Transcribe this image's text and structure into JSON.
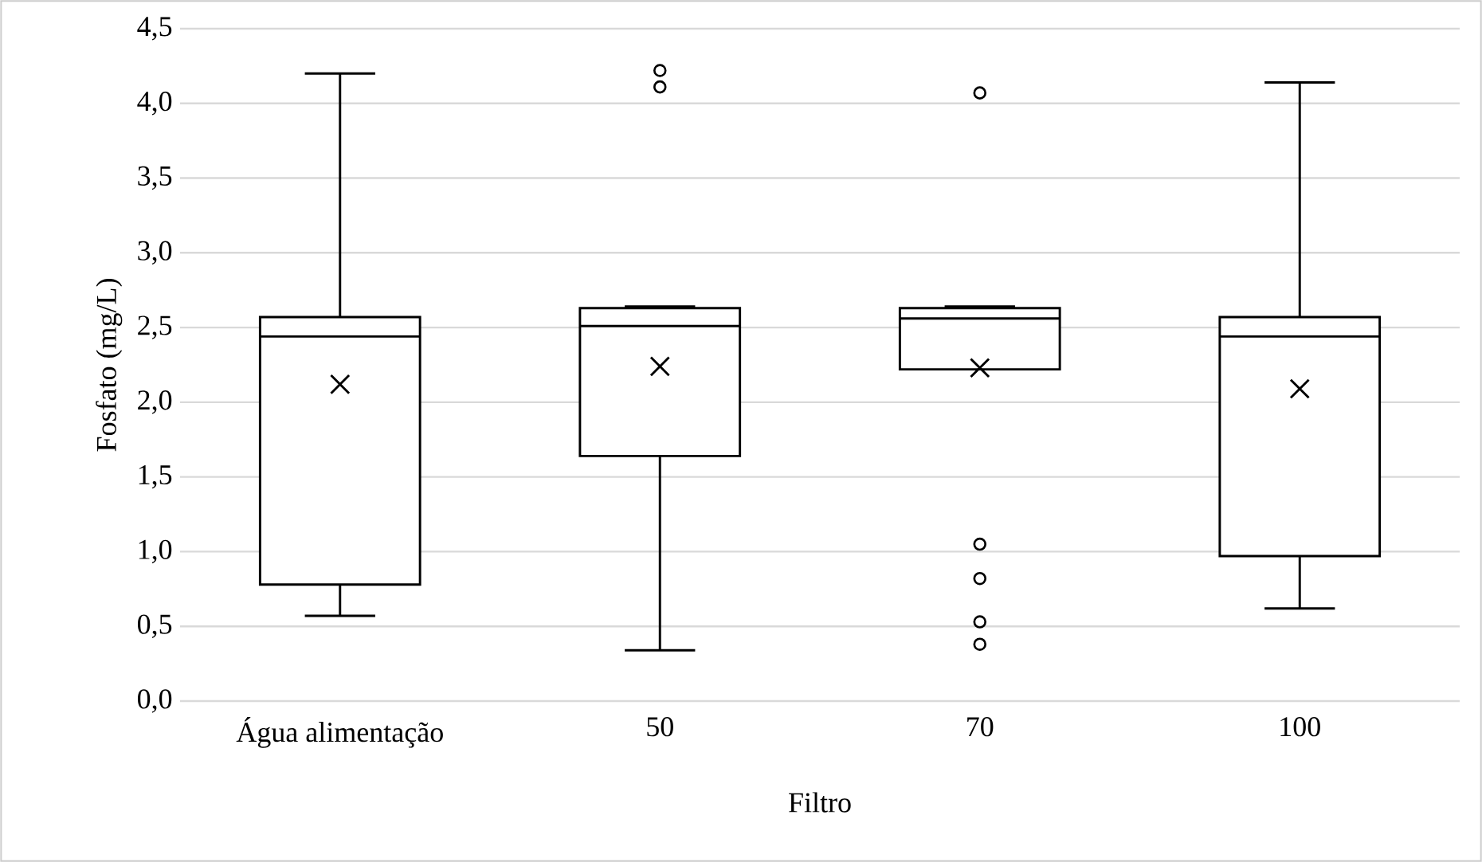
{
  "chart_data": {
    "type": "box",
    "xlabel": "Filtro",
    "ylabel": "Fosfato (mg/L)",
    "categories": [
      "Água alimentação",
      "50",
      "70",
      "100"
    ],
    "color": "#000000",
    "boxes": [
      {
        "low": 0.57,
        "q1": 0.78,
        "median": 2.44,
        "q3": 2.57,
        "high": 4.2,
        "mean": 2.12
      },
      {
        "low": 0.34,
        "q1": 1.64,
        "median": 2.51,
        "q3": 2.63,
        "high": 2.64,
        "mean": 2.24,
        "outliers": [
          4.22,
          4.11
        ]
      },
      {
        "low": 2.22,
        "q1": 2.22,
        "median": 2.56,
        "q3": 2.63,
        "high": 2.64,
        "mean": 2.23,
        "outliers": [
          4.07,
          1.05,
          0.82,
          0.53,
          0.38
        ]
      },
      {
        "low": 0.62,
        "q1": 0.97,
        "median": 2.44,
        "q3": 2.57,
        "high": 4.14,
        "mean": 2.09
      }
    ],
    "ylim": [
      0,
      4.5
    ],
    "yticks": [
      {
        "value": 0,
        "label": "0,0"
      },
      {
        "value": 0.5,
        "label": "0,5"
      },
      {
        "value": 1,
        "label": "1,0"
      },
      {
        "value": 1.5,
        "label": "1,5"
      },
      {
        "value": 2,
        "label": "2,0"
      },
      {
        "value": 2.5,
        "label": "2,5"
      },
      {
        "value": 3,
        "label": "3,0"
      },
      {
        "value": 3.5,
        "label": "3,5"
      },
      {
        "value": 4,
        "label": "4,0"
      },
      {
        "value": 4.5,
        "label": "4,5"
      }
    ],
    "grid": "y"
  }
}
